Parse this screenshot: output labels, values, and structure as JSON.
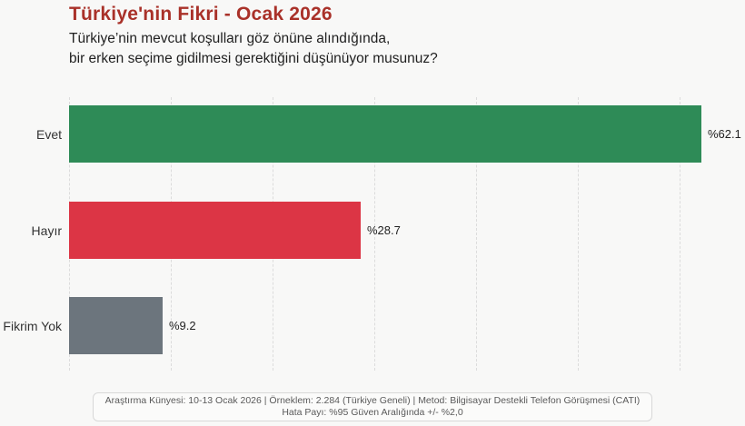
{
  "header": {
    "title": "Türkiye'nin Fikri - Ocak 2026",
    "subtitle_line1": "Türkiye’nin mevcut koşulları göz önüne alındığında,",
    "subtitle_line2": "bir erken seçime gidilmesi gerektiğini düşünüyor musunuz?"
  },
  "chart_data": {
    "type": "bar",
    "orientation": "horizontal",
    "title": "Türkiye'nin Fikri - Ocak 2026",
    "categories": [
      "Evet",
      "Hayır",
      "Fikrim Yok"
    ],
    "values": [
      62.1,
      28.7,
      9.2
    ],
    "value_labels": [
      "%62.1",
      "%28.7",
      "%9.2"
    ],
    "bar_colors": [
      "#2e8b57",
      "#dc3545",
      "#6c757d"
    ],
    "xlim": [
      0,
      66
    ],
    "gridline_values": [
      0,
      10,
      20,
      30,
      40,
      50,
      60
    ],
    "grid": "vertical-dashed",
    "legend": "none"
  },
  "footer": {
    "line1": "Araştırma Künyesi: 10-13 Ocak 2026 | Örneklem: 2.284 (Türkiye Geneli) | Metod: Bilgisayar Destekli Telefon Görüşmesi (CATI)",
    "line2": "Hata Payı: %95 Güven Aralığında +/- %2,0"
  },
  "colors": {
    "title": "#a93129",
    "text": "#1f1f1f",
    "green": "#2e8b57",
    "red": "#dc3545",
    "gray": "#6c757d",
    "gridline": "#dcdcdc",
    "background": "#f8f8f7",
    "footer_text": "#5a5a5a",
    "footer_border": "#d8d8d8"
  }
}
